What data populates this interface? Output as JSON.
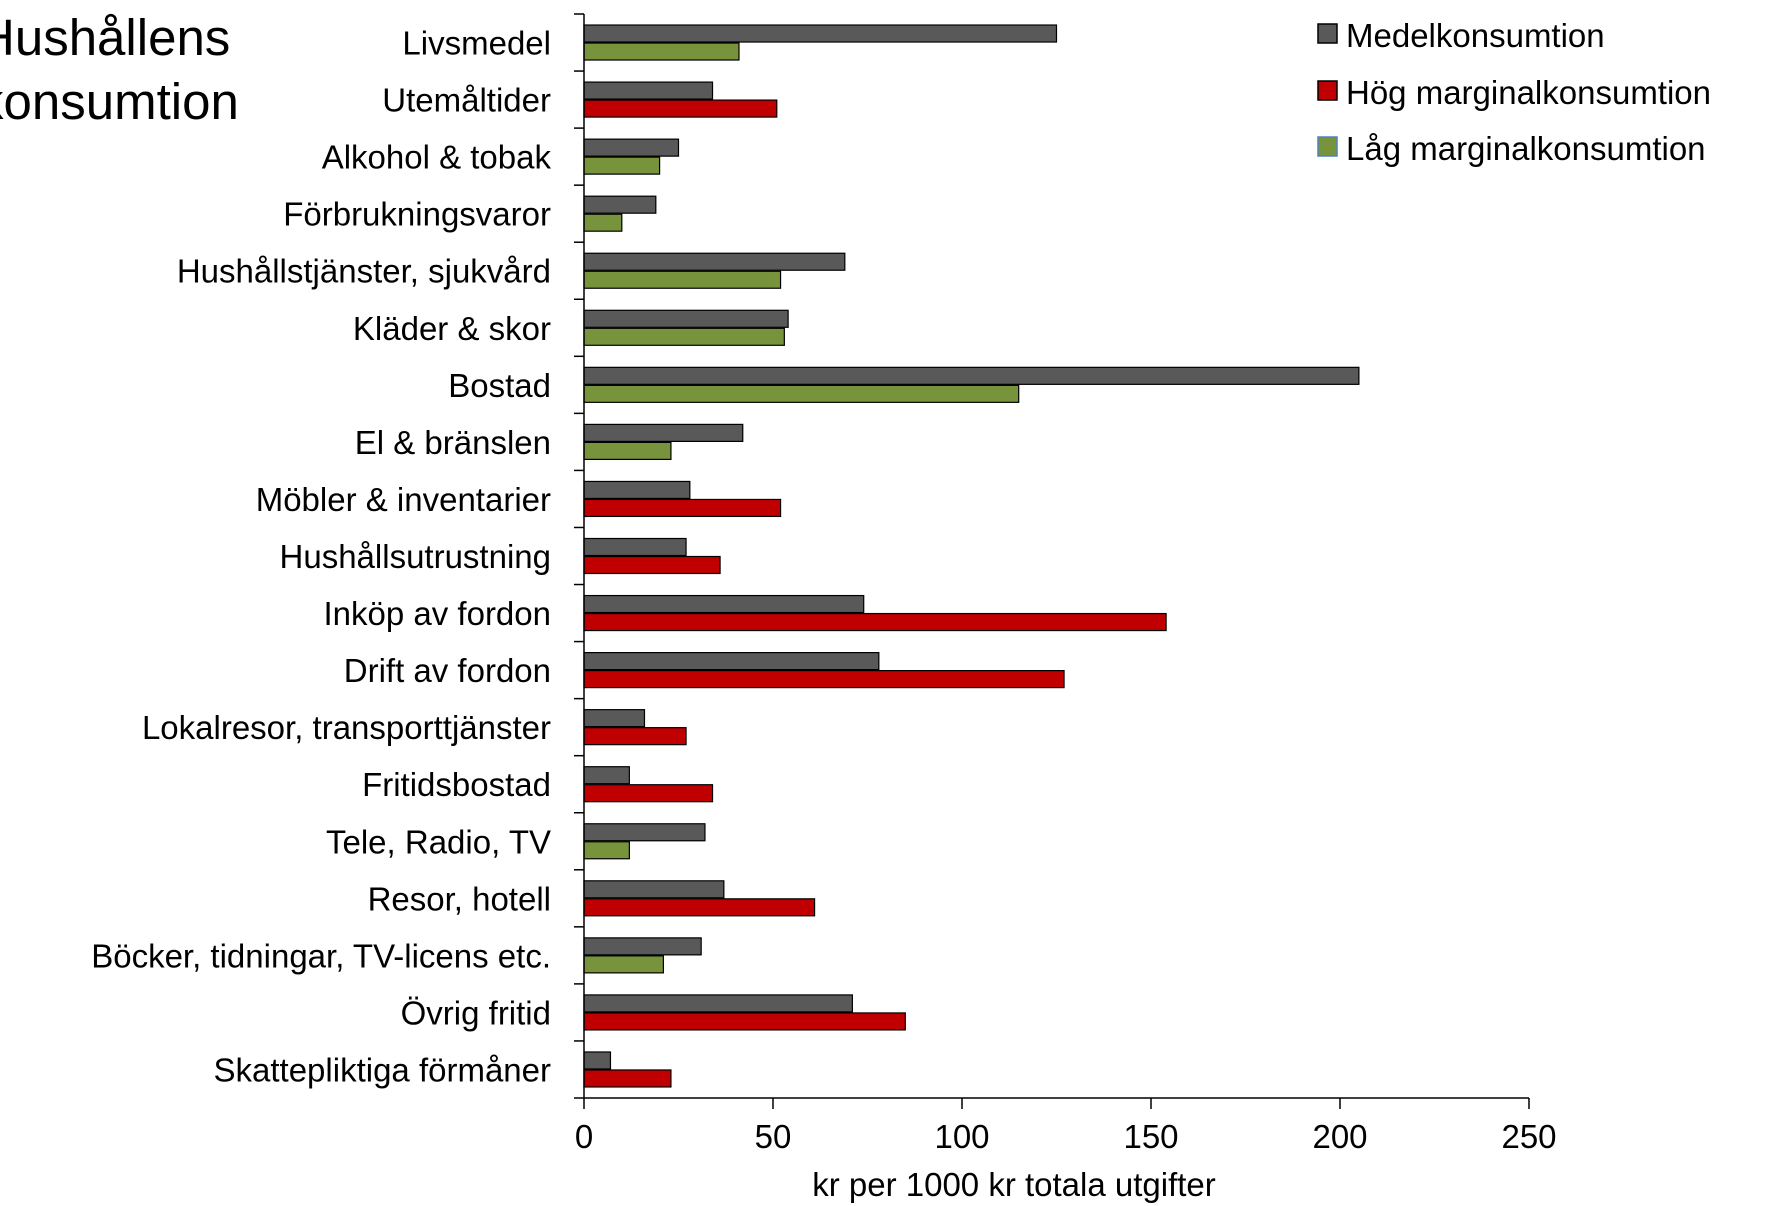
{
  "title_lines": [
    "Hushållens",
    "konsumtion"
  ],
  "chart_data": {
    "type": "bar",
    "orientation": "horizontal",
    "categories": [
      "Livsmedel",
      "Utemåltider",
      "Alkohol & tobak",
      "Förbrukningsvaror",
      "Hushållstjänster, sjukvård",
      "Kläder & skor",
      "Bostad",
      "El & bränslen",
      "Möbler & inventarier",
      "Hushållsutrustning",
      "Inköp av fordon",
      "Drift av fordon",
      "Lokalresor, transporttjänster",
      "Fritidsbostad",
      "Tele, Radio, TV",
      "Resor, hotell",
      "Böcker, tidningar, TV-licens etc.",
      "Övrig fritid",
      "Skattepliktiga förmåner"
    ],
    "series": [
      {
        "name": "Medelkonsumtion",
        "color": "#595959",
        "values": [
          125,
          34,
          25,
          19,
          69,
          54,
          205,
          42,
          28,
          27,
          74,
          78,
          16,
          12,
          32,
          37,
          31,
          71,
          7
        ]
      },
      {
        "name": "Marginalkonsumtion",
        "color_key": "marginal_kind",
        "values": [
          41,
          51,
          20,
          10,
          52,
          53,
          115,
          23,
          52,
          36,
          154,
          127,
          27,
          34,
          12,
          61,
          21,
          85,
          23
        ],
        "marginal_kind": [
          "low",
          "high",
          "low",
          "low",
          "low",
          "low",
          "low",
          "low",
          "high",
          "high",
          "high",
          "high",
          "high",
          "high",
          "low",
          "high",
          "low",
          "high",
          "high"
        ]
      }
    ],
    "legend": {
      "position": "top-right",
      "entries": [
        {
          "label": "Medelkonsumtion",
          "color": "#595959"
        },
        {
          "label": "Hög marginalkonsumtion",
          "color": "#c00000"
        },
        {
          "label": "Låg marginalkonsumtion",
          "color": "#77933c",
          "border": "#4f81bd"
        }
      ]
    },
    "colors": {
      "high": "#c00000",
      "low": "#77933c",
      "mean": "#595959"
    },
    "xlabel": "kr per 1000 kr totala utgifter",
    "ylabel": "",
    "xlim": [
      0,
      250
    ],
    "xticks": [
      0,
      50,
      100,
      150,
      200,
      250
    ],
    "grid": false
  }
}
